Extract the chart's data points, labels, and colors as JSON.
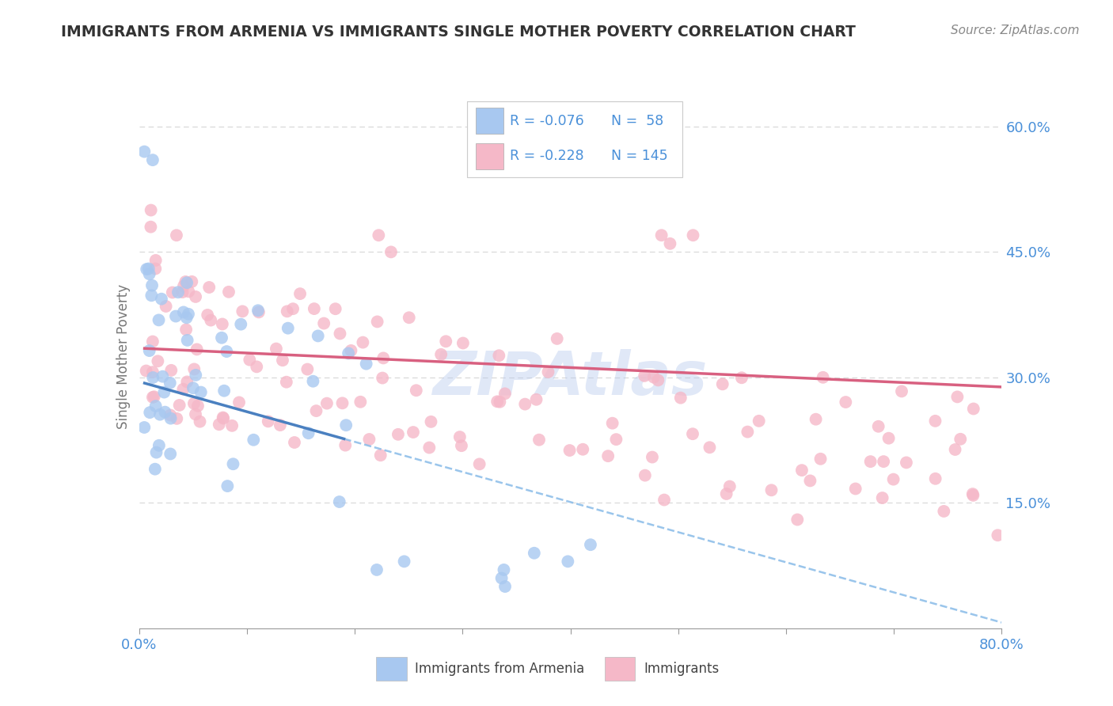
{
  "title": "IMMIGRANTS FROM ARMENIA VS IMMIGRANTS SINGLE MOTHER POVERTY CORRELATION CHART",
  "source": "Source: ZipAtlas.com",
  "ylabel": "Single Mother Poverty",
  "xlim": [
    0.0,
    0.8
  ],
  "ylim": [
    0.0,
    0.65
  ],
  "xtick_positions": [
    0.0,
    0.1,
    0.2,
    0.3,
    0.4,
    0.5,
    0.6,
    0.7,
    0.8
  ],
  "ytick_positions": [
    0.15,
    0.3,
    0.45,
    0.6
  ],
  "ytick_labels": [
    "15.0%",
    "30.0%",
    "45.0%",
    "60.0%"
  ],
  "series1_name": "Immigrants from Armenia",
  "series1_color": "#a8c8f0",
  "series2_name": "Immigrants",
  "series2_color": "#f5b8c8",
  "trend1_solid_color": "#4a80c0",
  "trend1_dash_color": "#88bbe8",
  "trend2_color": "#d86080",
  "watermark": "ZIPAtlas",
  "background_color": "#ffffff",
  "grid_color": "#cccccc",
  "title_color": "#333333",
  "axis_color": "#4a90d9",
  "legend_text_color": "#4a90d9",
  "ylabel_color": "#777777",
  "source_color": "#888888",
  "trend1_start_x": 0.005,
  "trend1_solid_end_x": 0.19,
  "trend1_dash_end_x": 0.8,
  "trend1_start_y": 0.295,
  "trend1_slope": -0.36,
  "trend2_start_x": 0.005,
  "trend2_end_x": 0.8,
  "trend2_start_y": 0.335,
  "trend2_slope": -0.058
}
